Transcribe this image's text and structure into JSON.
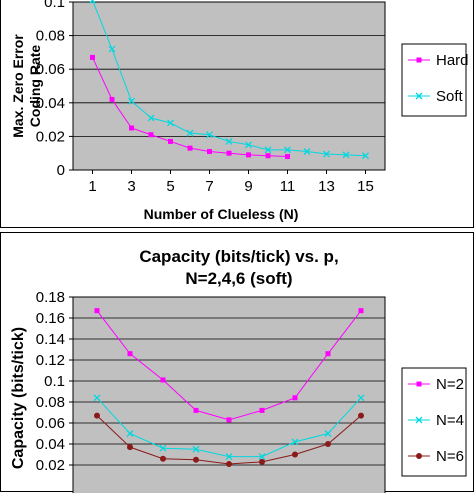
{
  "chart_data": [
    {
      "type": "line",
      "title": "",
      "xlabel": "Number of Clueless (N)",
      "ylabel": "Max. Zero Error Coding Rate",
      "xlim": [
        0,
        16
      ],
      "ylim": [
        0,
        0.1
      ],
      "x_ticks": [
        "1",
        "3",
        "5",
        "7",
        "9",
        "11",
        "13",
        "15"
      ],
      "y_ticks": [
        "0",
        "0.02",
        "0.04",
        "0.06",
        "0.08",
        "0.1"
      ],
      "grid": true,
      "legend_position": "right",
      "series": [
        {
          "name": "Hard",
          "color": "#ff00ff",
          "marker": "square",
          "x": [
            1,
            2,
            3,
            4,
            5,
            6,
            7,
            8,
            9,
            10,
            11
          ],
          "values": [
            0.067,
            0.042,
            0.025,
            0.021,
            0.017,
            0.013,
            0.011,
            0.01,
            0.009,
            0.0085,
            0.008
          ]
        },
        {
          "name": "Soft",
          "color": "#00d8e0",
          "marker": "x",
          "x": [
            1,
            2,
            3,
            4,
            5,
            6,
            7,
            8,
            9,
            10,
            11,
            12,
            13,
            14,
            15
          ],
          "values": [
            0.101,
            0.072,
            0.041,
            0.031,
            0.028,
            0.022,
            0.021,
            0.017,
            0.015,
            0.012,
            0.012,
            0.011,
            0.0095,
            0.009,
            0.0085
          ]
        }
      ]
    },
    {
      "type": "line",
      "title": "Capacity (bits/tick) vs. p,",
      "subtitle": "N=2,4,6 (soft)",
      "xlabel": "",
      "ylabel": "Capacity (bits/tick)",
      "ylim": [
        0,
        0.18
      ],
      "y_ticks": [
        "0.02",
        "0.04",
        "0.06",
        "0.08",
        "0.1",
        "0.12",
        "0.14",
        "0.16",
        "0.18"
      ],
      "x_count": 9,
      "grid": true,
      "legend_position": "right",
      "series": [
        {
          "name": "N=2",
          "color": "#ff00ff",
          "marker": "square",
          "values": [
            0.167,
            0.126,
            0.101,
            0.072,
            0.063,
            0.072,
            0.084,
            0.126,
            0.167
          ]
        },
        {
          "name": "N=4",
          "color": "#00d8e0",
          "marker": "x",
          "values": [
            0.084,
            0.05,
            0.036,
            0.035,
            0.028,
            0.028,
            0.042,
            0.05,
            0.084
          ]
        },
        {
          "name": "N=6",
          "color": "#8b1a1a",
          "marker": "circle",
          "values": [
            0.067,
            0.037,
            0.026,
            0.025,
            0.021,
            0.023,
            0.03,
            0.04,
            0.067
          ]
        }
      ]
    }
  ]
}
